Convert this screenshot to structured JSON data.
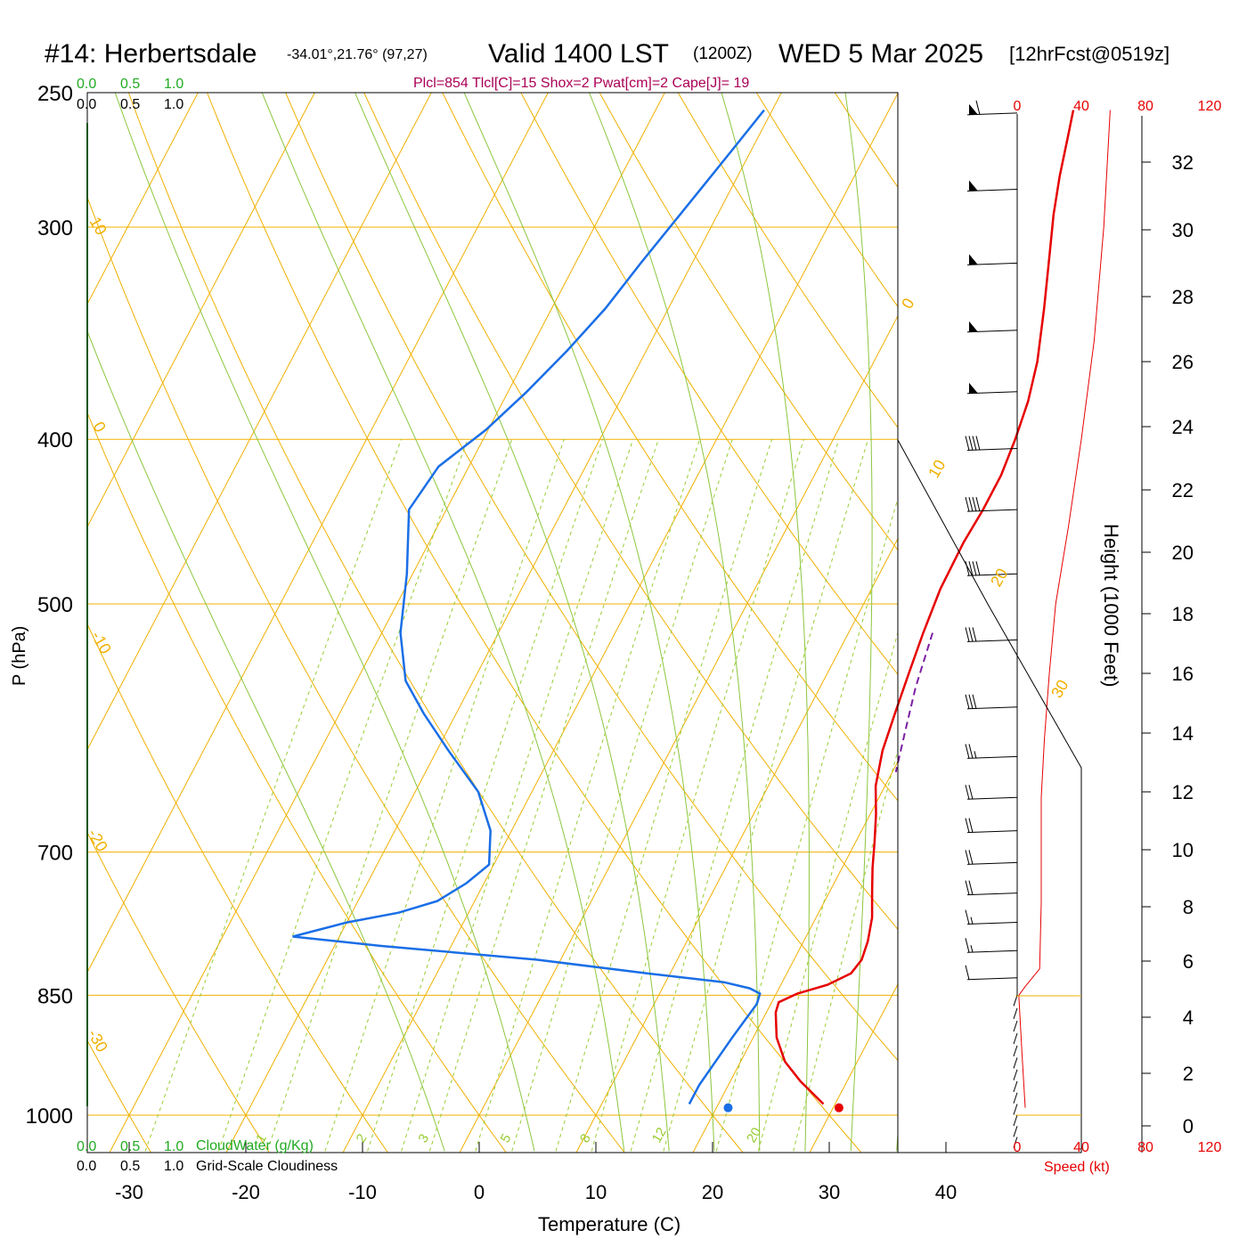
{
  "header": {
    "station": "#14: Herbertsdale",
    "coords": "-34.01°,21.76° (97,27)",
    "valid": "Valid 1400 LST",
    "zulu": "(1200Z)",
    "date": "WED 5 Mar 2025",
    "forecast": "[12hrFcst@0519z]",
    "indices": "Plcl=854 Tlcl[C]=15 Shox=2 Pwat[cm]=2 Cape[J]= 19"
  },
  "colors": {
    "temperature": "#e60000",
    "dewpoint": "#1a6ee6",
    "isotherm": "#f0b000",
    "mixing_ratio": "#99cc33",
    "moist_adiabat": "#8cc63e",
    "cloud_water": "#22aa22",
    "parcel": "#7b1fa2",
    "indices_text": "#aa0055"
  },
  "chart_data": {
    "type": "line",
    "title": "#14: Herbertsdale",
    "xlabel": "Temperature (C)",
    "ylabel": "P (hPa)",
    "right_label": "Height (1000 Feet)",
    "xlim": [
      -34,
      36
    ],
    "ylim": [
      1030,
      250
    ],
    "x_ticks": [
      "-30",
      "-20",
      "-10",
      "0",
      "10",
      "20",
      "30",
      "40"
    ],
    "pressure_ticks": [
      "250",
      "300",
      "400",
      "500",
      "700",
      "850",
      "1000"
    ],
    "height_ticks": [
      "0",
      "2",
      "4",
      "6",
      "8",
      "10",
      "12",
      "14",
      "16",
      "18",
      "20",
      "22",
      "24",
      "26",
      "28",
      "30",
      "32"
    ],
    "mixing_ratio_labels": [
      "1",
      "2",
      "3",
      "5",
      "8",
      "12",
      "20"
    ],
    "isotherm_labels": [
      "10",
      "0",
      "-10",
      "-20",
      "-30",
      "0",
      "10",
      "20",
      "30"
    ],
    "top_scale_green": [
      "0.0",
      "0.5",
      "1.0"
    ],
    "top_scale_black": [
      "0.0",
      "0.5",
      "1.0"
    ],
    "bottom_scale_green": [
      "0.0",
      "0.5",
      "1.0"
    ],
    "bottom_scale_black": [
      "0.0",
      "0.5",
      "1.0"
    ],
    "cloud_water_label": "CloudWater (g/Kg)",
    "cloudiness_label": "Grid-Scale Cloudiness",
    "speed_ticks_top": [
      "0",
      "40",
      "80",
      "120"
    ],
    "speed_ticks_bottom": [
      "0",
      "40",
      "80",
      "120"
    ],
    "speed_label": "Speed (kt)",
    "series": [
      {
        "name": "Temperature",
        "points": [
          [
            29.0,
            985
          ],
          [
            26,
            955
          ],
          [
            23.8,
            930
          ],
          [
            22,
            900
          ],
          [
            20.8,
            870
          ],
          [
            20.6,
            858
          ],
          [
            21.8,
            848
          ],
          [
            24,
            838
          ],
          [
            25.5,
            825
          ],
          [
            25.8,
            810
          ],
          [
            25.5,
            790
          ],
          [
            24.8,
            765
          ],
          [
            23.7,
            740
          ],
          [
            22.6,
            715
          ],
          [
            21.6,
            690
          ],
          [
            20.5,
            665
          ],
          [
            19.2,
            640
          ],
          [
            18.2,
            610
          ],
          [
            17.6,
            580
          ],
          [
            17.0,
            550
          ],
          [
            16.4,
            520
          ],
          [
            15.9,
            490
          ],
          [
            15.8,
            460
          ],
          [
            16.0,
            440
          ],
          [
            16.0,
            420
          ],
          [
            15.6,
            400
          ],
          [
            15.0,
            380
          ],
          [
            14.0,
            360
          ],
          [
            12.2,
            335
          ],
          [
            10.3,
            312
          ],
          [
            8.8,
            295
          ],
          [
            7.6,
            280
          ],
          [
            6.5,
            265
          ],
          [
            5.8,
            256
          ]
        ]
      },
      {
        "name": "Dewpoint",
        "points": [
          [
            17.5,
            985
          ],
          [
            17.5,
            960
          ],
          [
            18.2,
            900
          ],
          [
            18.8,
            860
          ],
          [
            18.6,
            848
          ],
          [
            17.5,
            842
          ],
          [
            15,
            835
          ],
          [
            8,
            825
          ],
          [
            -2,
            810
          ],
          [
            -16,
            795
          ],
          [
            -24,
            785
          ],
          [
            -20,
            770
          ],
          [
            -16,
            760
          ],
          [
            -13.2,
            748
          ],
          [
            -11.5,
            730
          ],
          [
            -10.4,
            712
          ],
          [
            -11.8,
            680
          ],
          [
            -14.6,
            645
          ],
          [
            -19,
            610
          ],
          [
            -22.8,
            580
          ],
          [
            -25.8,
            555
          ],
          [
            -28.4,
            520
          ],
          [
            -30.5,
            480
          ],
          [
            -33.2,
            440
          ],
          [
            -32.6,
            415
          ],
          [
            -30.2,
            395
          ],
          [
            -28.4,
            375
          ],
          [
            -26.8,
            355
          ],
          [
            -25.4,
            335
          ],
          [
            -24.4,
            315
          ],
          [
            -23.4,
            298
          ],
          [
            -22.4,
            282
          ],
          [
            -21.5,
            268
          ],
          [
            -20.7,
            256
          ]
        ]
      },
      {
        "name": "Parcel",
        "points": [
          [
            17.2,
            520
          ],
          [
            18.2,
            560
          ],
          [
            19.3,
            595
          ],
          [
            20.3,
            628
          ]
        ]
      }
    ],
    "surface_markers": {
      "temperature": 30.5,
      "dewpoint": 21,
      "pressure": 990
    },
    "wind_speed_profile": [
      [
        5,
        990
      ],
      [
        3,
        920
      ],
      [
        1,
        850
      ],
      [
        5,
        840
      ],
      [
        14,
        820
      ],
      [
        15,
        750
      ],
      [
        15,
        700
      ],
      [
        15,
        650
      ],
      [
        17,
        600
      ],
      [
        20,
        550
      ],
      [
        24,
        500
      ],
      [
        32,
        450
      ],
      [
        40,
        400
      ],
      [
        48,
        350
      ],
      [
        54,
        300
      ],
      [
        58,
        256
      ]
    ],
    "wind_barbs": [
      {
        "p": 257,
        "flags": 1,
        "full": 1,
        "half": 0
      },
      {
        "p": 285,
        "flags": 1,
        "full": 0,
        "half": 0
      },
      {
        "p": 315,
        "flags": 1,
        "full": 0,
        "half": 0
      },
      {
        "p": 345,
        "flags": 1,
        "full": 0,
        "half": 0
      },
      {
        "p": 375,
        "flags": 1,
        "full": 0,
        "half": 0
      },
      {
        "p": 405,
        "flags": 0,
        "full": 4,
        "half": 0
      },
      {
        "p": 440,
        "flags": 0,
        "full": 4,
        "half": 0
      },
      {
        "p": 480,
        "flags": 0,
        "full": 4,
        "half": 0
      },
      {
        "p": 525,
        "flags": 0,
        "full": 3,
        "half": 0
      },
      {
        "p": 575,
        "flags": 0,
        "full": 3,
        "half": 0
      },
      {
        "p": 615,
        "flags": 0,
        "full": 2,
        "half": 1
      },
      {
        "p": 650,
        "flags": 0,
        "full": 2,
        "half": 0
      },
      {
        "p": 680,
        "flags": 0,
        "full": 2,
        "half": 0
      },
      {
        "p": 710,
        "flags": 0,
        "full": 2,
        "half": 0
      },
      {
        "p": 740,
        "flags": 0,
        "full": 2,
        "half": 0
      },
      {
        "p": 770,
        "flags": 0,
        "full": 1,
        "half": 1
      },
      {
        "p": 800,
        "flags": 0,
        "full": 1,
        "half": 1
      },
      {
        "p": 830,
        "flags": 0,
        "full": 1,
        "half": 0
      }
    ]
  }
}
